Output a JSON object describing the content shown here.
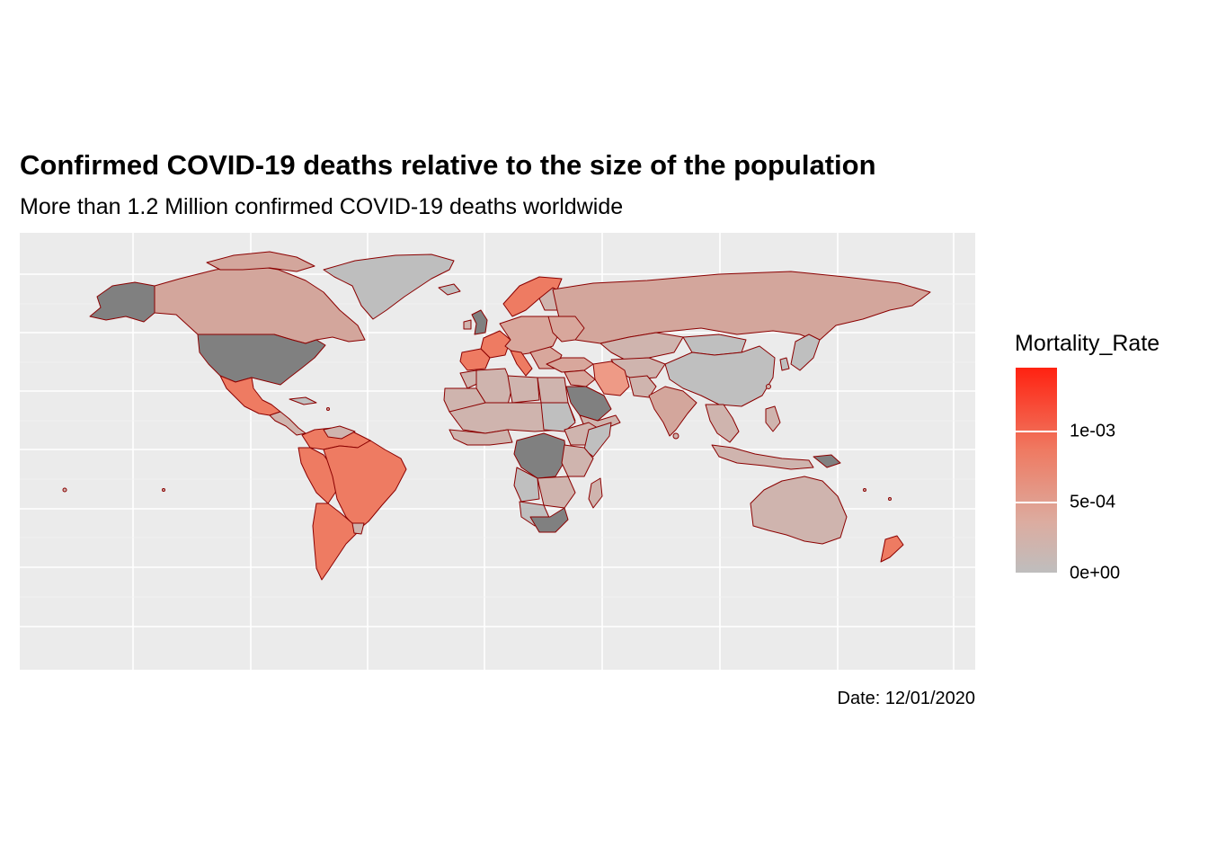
{
  "title": "Confirmed COVID-19 deaths relative to the size of the population",
  "subtitle": "More than 1.2 Million confirmed COVID-19 deaths worldwide",
  "caption": "Date: 12/01/2020",
  "legend": {
    "title": "Mortality_Rate",
    "ticks": [
      {
        "label": "1e-03",
        "value": 0.001
      },
      {
        "label": "5e-04",
        "value": 0.0005
      },
      {
        "label": "0e+00",
        "value": 0
      }
    ],
    "range": [
      0,
      0.00145
    ],
    "colors": {
      "low": "#bebebe",
      "mid": "#dcaca0",
      "high": "#ff2211",
      "na": "#808080",
      "border": "#8b0000",
      "panel": "#ebebeb",
      "grid": "#ffffff"
    }
  }
}
